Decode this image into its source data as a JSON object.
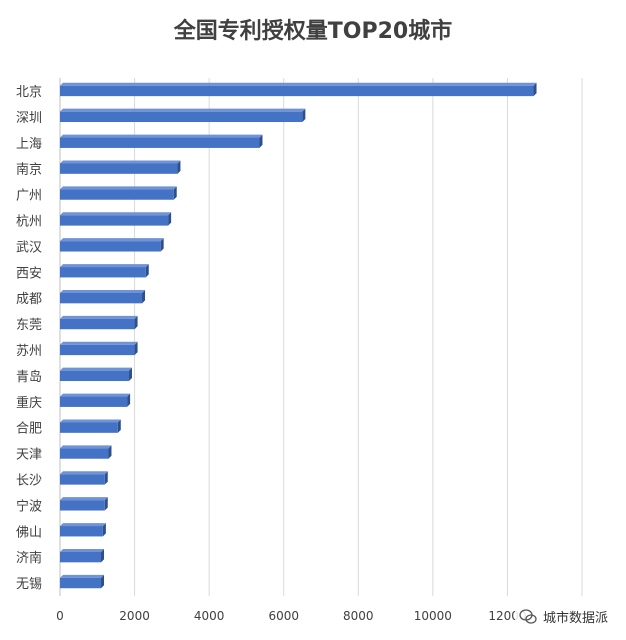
{
  "chart_data": {
    "type": "bar",
    "orientation": "horizontal",
    "title": "全国专利授权量TOP20城市",
    "categories": [
      "北京",
      "深圳",
      "上海",
      "南京",
      "广州",
      "杭州",
      "武汉",
      "西安",
      "成都",
      "东莞",
      "苏州",
      "青岛",
      "重庆",
      "合肥",
      "天津",
      "长沙",
      "宁波",
      "佛山",
      "济南",
      "无锡"
    ],
    "values": [
      12700,
      6500,
      5350,
      3150,
      3050,
      2900,
      2700,
      2300,
      2200,
      2000,
      2000,
      1850,
      1800,
      1550,
      1300,
      1200,
      1200,
      1150,
      1100,
      1100
    ],
    "xlim": [
      0,
      14000
    ],
    "xticks": [
      "0",
      "2000",
      "4000",
      "6000",
      "8000",
      "10000",
      "12000"
    ],
    "grid": true,
    "bar_color": "#4472c4"
  },
  "watermark": {
    "text": "城市数据派",
    "icon": "wechat-bubble-icon"
  }
}
